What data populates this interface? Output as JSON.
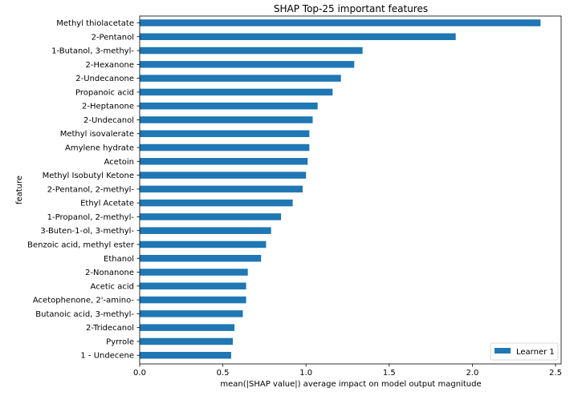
{
  "chart_data": {
    "type": "bar",
    "orientation": "horizontal",
    "title": "SHAP Top-25 important features",
    "xlabel": "mean(|SHAP value|) average impact on model output magnitude",
    "ylabel": "feature",
    "xlim": [
      0,
      2.5
    ],
    "xticks": [
      0,
      0.5,
      1,
      1.5,
      2,
      2.5
    ],
    "xtick_labels": [
      "0.0",
      "0.5",
      "1.0",
      "1.5",
      "2.0",
      "2.5"
    ],
    "grid": false,
    "legend_position": "bottom-right",
    "colors": {
      "bar": "#1f77b4",
      "axis": "#000000"
    },
    "categories": [
      "Methyl thiolacetate",
      "2-Pentanol",
      "1-Butanol, 3-methyl-",
      "2-Hexanone",
      "2-Undecanone",
      "Propanoic acid",
      "2-Heptanone",
      "2-Undecanol",
      "Methyl isovalerate",
      "Amylene hydrate",
      "Acetoin",
      "Methyl Isobutyl Ketone",
      "2-Pentanol, 2-methyl-",
      "Ethyl Acetate",
      "1-Propanol, 2-methyl-",
      "3-Buten-1-ol, 3-methyl-",
      "Benzoic acid, methyl ester",
      "Ethanol",
      "2-Nonanone",
      "Acetic acid",
      "Acetophenone, 2'-amino-",
      "Butanoic acid, 3-methyl-",
      "2-Tridecanol",
      "Pyrrole",
      "1 - Undecene"
    ],
    "series": [
      {
        "name": "Learner 1",
        "values": [
          2.41,
          1.9,
          1.34,
          1.29,
          1.21,
          1.16,
          1.07,
          1.04,
          1.02,
          1.02,
          1.01,
          1.0,
          0.98,
          0.92,
          0.85,
          0.79,
          0.76,
          0.73,
          0.65,
          0.64,
          0.64,
          0.62,
          0.57,
          0.56,
          0.55
        ]
      }
    ]
  }
}
